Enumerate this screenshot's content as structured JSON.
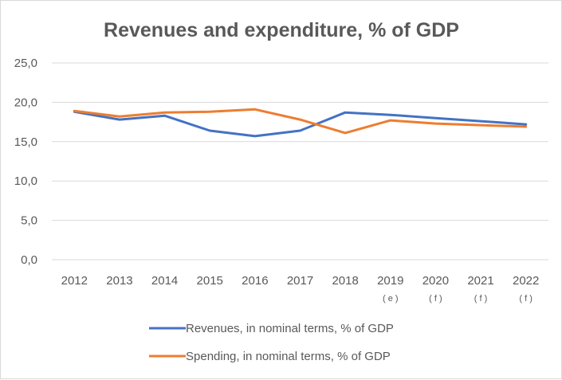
{
  "chart_data": {
    "type": "line",
    "title": "Revenues and expenditure, % of GDP",
    "xlabel": "",
    "ylabel": "",
    "categories": [
      "2012",
      "2013",
      "2014",
      "2015",
      "2016",
      "2017",
      "2018",
      "2019",
      "2020",
      "2021",
      "2022"
    ],
    "category_notes": [
      "",
      "",
      "",
      "",
      "",
      "",
      "",
      "( e )",
      "( f )",
      "( f )",
      "( f )"
    ],
    "y_tick_labels": [
      "0,0",
      "5,0",
      "10,0",
      "15,0",
      "20,0",
      "25,0"
    ],
    "ylim": [
      0,
      25
    ],
    "y_ticks": [
      0,
      5,
      10,
      15,
      20,
      25
    ],
    "grid": true,
    "legend_position": "bottom",
    "series": [
      {
        "name": "Revenues, in nominal terms, % of GDP",
        "color": "#4472c4",
        "values": [
          18.8,
          17.8,
          18.3,
          16.4,
          15.7,
          16.4,
          18.7,
          18.4,
          18.0,
          17.6,
          17.2
        ]
      },
      {
        "name": "Spending, in nominal terms, % of GDP",
        "color": "#ed7d31",
        "values": [
          18.9,
          18.2,
          18.7,
          18.8,
          19.1,
          17.8,
          16.1,
          17.7,
          17.3,
          17.1,
          16.9
        ]
      }
    ]
  }
}
